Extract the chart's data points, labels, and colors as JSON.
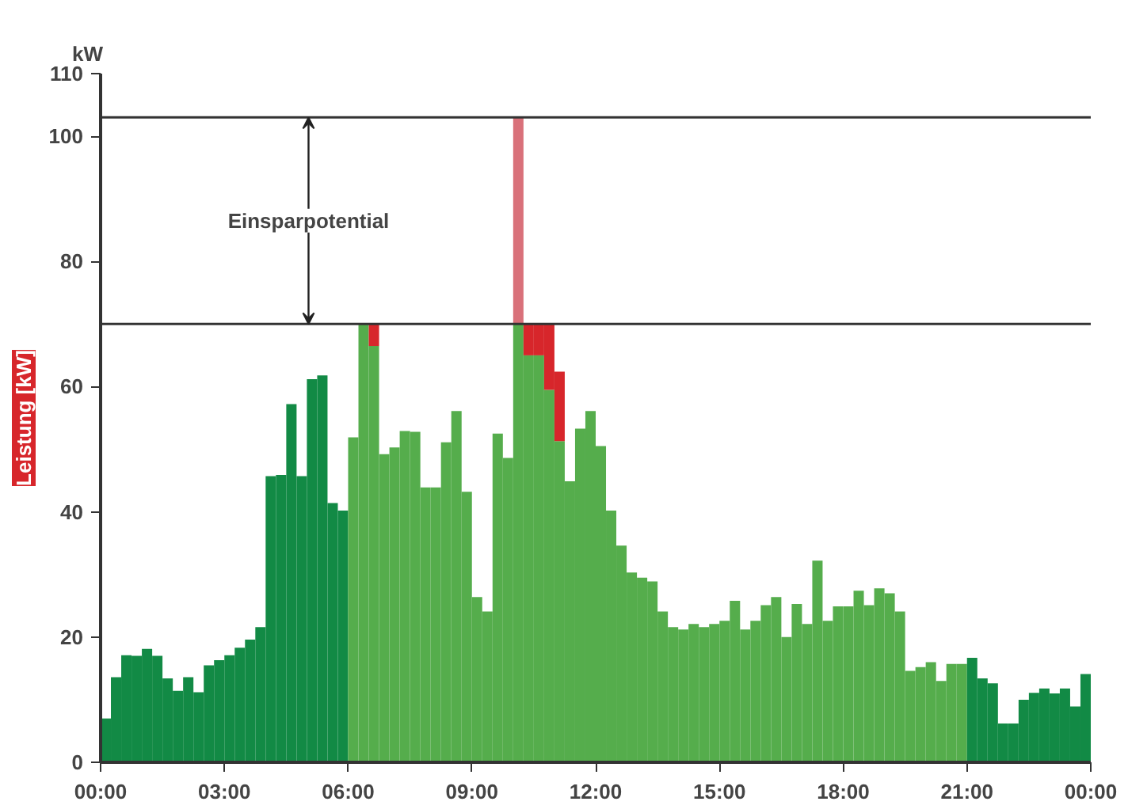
{
  "chart_data": {
    "type": "bar",
    "stacked": true,
    "ylabel": "Leistung [kW]",
    "x": [
      0.125,
      0.375,
      0.625,
      0.875,
      1.125,
      1.375,
      1.625,
      1.875,
      2.125,
      2.375,
      2.625,
      2.875,
      3.125,
      3.375,
      3.625,
      3.875,
      4.125,
      4.375,
      4.625,
      4.875,
      5.125,
      5.375,
      5.625,
      5.875,
      6.125,
      6.375,
      6.625,
      6.875,
      7.125,
      7.375,
      7.625,
      7.875,
      8.125,
      8.375,
      8.625,
      8.875,
      9.125,
      9.375,
      9.625,
      9.875,
      10.125,
      10.375,
      10.625,
      10.875,
      11.125,
      11.375,
      11.625,
      11.875,
      12.125,
      12.375,
      12.625,
      12.875,
      13.125,
      13.375,
      13.625,
      13.875,
      14.125,
      14.375,
      14.625,
      14.875,
      15.125,
      15.375,
      15.625,
      15.875,
      16.125,
      16.375,
      16.625,
      16.875,
      17.125,
      17.375,
      17.625,
      17.875,
      18.125,
      18.375,
      18.625,
      18.875,
      19.125,
      19.375,
      19.625,
      19.875,
      20.125,
      20.375,
      20.625,
      20.875,
      21.125,
      21.375,
      21.625,
      21.875,
      22.125,
      22.375,
      22.625,
      22.875,
      23.125,
      23.375,
      23.625,
      23.875
    ],
    "series": [
      {
        "colors": [
          "#128a45",
          "#128a45",
          "#128a45",
          "#128a45",
          "#128a45",
          "#128a45",
          "#128a45",
          "#128a45",
          "#128a45",
          "#128a45",
          "#128a45",
          "#128a45",
          "#128a45",
          "#128a45",
          "#128a45",
          "#128a45",
          "#128a45",
          "#128a45",
          "#128a45",
          "#128a45",
          "#128a45",
          "#128a45",
          "#128a45",
          "#128a45",
          "#55ad4c",
          "#55ad4c",
          "#55ad4c",
          "#55ad4c",
          "#55ad4c",
          "#55ad4c",
          "#55ad4c",
          "#55ad4c",
          "#55ad4c",
          "#55ad4c",
          "#55ad4c",
          "#55ad4c",
          "#55ad4c",
          "#55ad4c",
          "#55ad4c",
          "#55ad4c",
          "#55ad4c",
          "#55ad4c",
          "#55ad4c",
          "#55ad4c",
          "#55ad4c",
          "#55ad4c",
          "#55ad4c",
          "#55ad4c",
          "#55ad4c",
          "#55ad4c",
          "#55ad4c",
          "#55ad4c",
          "#55ad4c",
          "#55ad4c",
          "#55ad4c",
          "#55ad4c",
          "#55ad4c",
          "#55ad4c",
          "#55ad4c",
          "#55ad4c",
          "#55ad4c",
          "#55ad4c",
          "#55ad4c",
          "#55ad4c",
          "#55ad4c",
          "#55ad4c",
          "#55ad4c",
          "#55ad4c",
          "#55ad4c",
          "#55ad4c",
          "#55ad4c",
          "#55ad4c",
          "#55ad4c",
          "#55ad4c",
          "#55ad4c",
          "#55ad4c",
          "#55ad4c",
          "#55ad4c",
          "#55ad4c",
          "#55ad4c",
          "#55ad4c",
          "#55ad4c",
          "#55ad4c",
          "#55ad4c",
          "#128a45",
          "#128a45",
          "#128a45",
          "#128a45",
          "#128a45",
          "#128a45",
          "#128a45",
          "#128a45",
          "#128a45",
          "#128a45",
          "#128a45",
          "#128a45"
        ],
        "values": [
          7,
          13.6,
          17.1,
          17,
          18.1,
          17,
          13.4,
          11.4,
          13.6,
          11.2,
          15.5,
          16.3,
          17.1,
          18.3,
          19.6,
          21.6,
          45.7,
          45.9,
          57.2,
          45.7,
          61.2,
          61.8,
          41.4,
          40.2,
          51.9,
          70,
          66.5,
          49.2,
          50.3,
          52.9,
          52.8,
          43.9,
          43.9,
          51.1,
          56.1,
          43.2,
          26.4,
          24.1,
          52.5,
          48.6,
          70,
          65,
          65,
          59.5,
          51.3,
          44.9,
          53.3,
          56.1,
          50.5,
          40.2,
          34.6,
          30.3,
          29.5,
          28.9,
          24.1,
          21.6,
          21.2,
          22.1,
          21.6,
          22.1,
          22.6,
          25.8,
          21.2,
          22.6,
          25.1,
          26.4,
          20,
          25.3,
          22.1,
          32.2,
          22.6,
          24.9,
          24.9,
          27.4,
          25.1,
          27.8,
          27,
          24.1,
          14.6,
          15.2,
          16,
          13,
          15.7,
          15.7,
          16.7,
          13.4,
          12.6,
          6.2,
          6.2,
          10,
          11.1,
          11.8,
          11,
          11.8,
          8.9,
          14.1
        ]
      },
      {
        "color": "#d7262b",
        "values": [
          null,
          null,
          null,
          null,
          null,
          null,
          null,
          null,
          null,
          null,
          null,
          null,
          null,
          null,
          null,
          null,
          null,
          null,
          null,
          null,
          null,
          null,
          null,
          null,
          null,
          null,
          3.5,
          null,
          null,
          null,
          null,
          null,
          null,
          null,
          null,
          null,
          null,
          null,
          null,
          null,
          null,
          5,
          5,
          10.5,
          11.1,
          null,
          null,
          null,
          null,
          null,
          null,
          null,
          null,
          null,
          null,
          null,
          null,
          null,
          null,
          null,
          null,
          null,
          null,
          null,
          null,
          null,
          null,
          null,
          null,
          null,
          null,
          null,
          null,
          null,
          null,
          null,
          null,
          null,
          null,
          null,
          null,
          null,
          null,
          null,
          null,
          null,
          null,
          null,
          null,
          null,
          null,
          null,
          null,
          null,
          null,
          null
        ]
      },
      {
        "color": "#d9717a",
        "values": [
          null,
          null,
          null,
          null,
          null,
          null,
          null,
          null,
          null,
          null,
          null,
          null,
          null,
          null,
          null,
          null,
          null,
          null,
          null,
          null,
          null,
          null,
          null,
          null,
          null,
          null,
          null,
          null,
          null,
          null,
          null,
          null,
          null,
          null,
          null,
          null,
          null,
          null,
          null,
          null,
          33,
          null,
          null,
          null,
          null,
          null,
          null,
          null,
          null,
          null,
          null,
          null,
          null,
          null,
          null,
          null,
          null,
          null,
          null,
          null,
          null,
          null,
          null,
          null,
          null,
          null,
          null,
          null,
          null,
          null,
          null,
          null,
          null,
          null,
          null,
          null,
          null,
          null,
          null,
          null,
          null,
          null,
          null,
          null,
          null,
          null,
          null,
          null,
          null,
          null,
          null,
          null,
          null,
          null,
          null,
          null
        ]
      }
    ],
    "xlim": [
      0,
      24
    ],
    "xticks": [
      {
        "value": 0,
        "label": "00:00"
      },
      {
        "value": 3,
        "label": "03:00"
      },
      {
        "value": 6,
        "label": "06:00"
      },
      {
        "value": 9,
        "label": "09:00"
      },
      {
        "value": 12,
        "label": "12:00"
      },
      {
        "value": 15,
        "label": "15:00"
      },
      {
        "value": 18,
        "label": "18:00"
      },
      {
        "value": 21,
        "label": "21:00"
      },
      {
        "value": 24,
        "label": "00:00"
      }
    ],
    "ylim": [
      0,
      110
    ],
    "yticks": [
      0,
      20,
      40,
      60,
      80,
      100,
      110
    ],
    "ref_lines": [
      {
        "axis": "y",
        "value": 70,
        "color": "#333333"
      },
      {
        "axis": "y",
        "value": 103,
        "color": "#333333"
      }
    ],
    "annotations": [
      "kW",
      "Einsparpotential"
    ],
    "grid": false
  }
}
